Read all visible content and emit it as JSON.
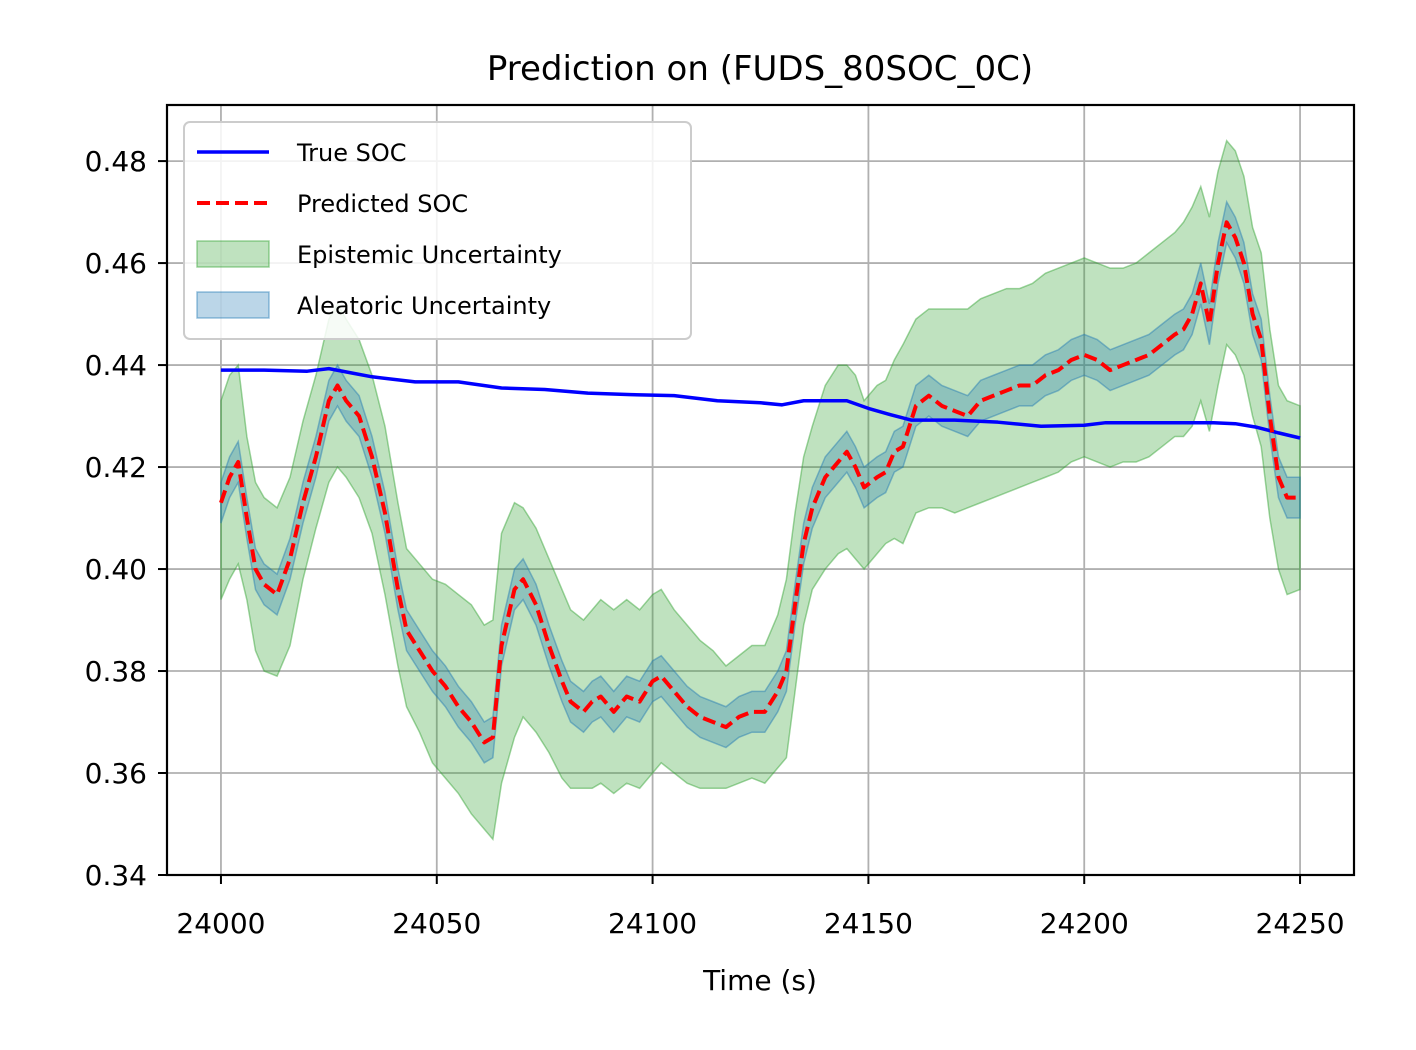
{
  "chart_data": {
    "type": "line",
    "title": "Prediction on (FUDS_80SOC_0C)",
    "xlabel": "Time (s)",
    "ylabel": "",
    "xlim": [
      23987.5,
      24262.5
    ],
    "ylim": [
      0.34,
      0.491
    ],
    "xticks": [
      24000,
      24050,
      24100,
      24150,
      24200,
      24250
    ],
    "yticks": [
      0.34,
      0.36,
      0.38,
      0.4,
      0.42,
      0.44,
      0.46,
      0.48
    ],
    "ytick_labels": [
      "0.34",
      "0.36",
      "0.38",
      "0.40",
      "0.42",
      "0.44",
      "0.46",
      "0.48"
    ],
    "grid": true,
    "legend_position": "top-left",
    "x": [
      24000,
      24002,
      24004,
      24006,
      24008,
      24010,
      24013,
      24016,
      24019,
      24022,
      24025,
      24027,
      24029,
      24032,
      24035,
      24038,
      24041,
      24043,
      24046,
      24049,
      24052,
      24055,
      24058,
      24061,
      24063,
      24065,
      24068,
      24070,
      24073,
      24076,
      24079,
      24081,
      24084,
      24086,
      24088,
      24091,
      24094,
      24097,
      24100,
      24102,
      24105,
      24108,
      24111,
      24114,
      24117,
      24120,
      24123,
      24126,
      24129,
      24131,
      24133,
      24135,
      24137,
      24140,
      24143,
      24145,
      24147,
      24149,
      24152,
      24154,
      24156,
      24158,
      24161,
      24164,
      24167,
      24170,
      24173,
      24176,
      24179,
      24182,
      24185,
      24188,
      24191,
      24194,
      24197,
      24200,
      24203,
      24206,
      24209,
      24212,
      24215,
      24218,
      24221,
      24223,
      24225,
      24227,
      24229,
      24231,
      24233,
      24235,
      24237,
      24239,
      24241,
      24243,
      24245,
      24247,
      24250
    ],
    "series": [
      {
        "name": "True SOC",
        "color": "#0000ff",
        "style": "solid",
        "x": [
          24000,
          24010,
          24020,
          24025,
          24030,
          24035,
          24045,
          24055,
          24065,
          24075,
          24085,
          24095,
          24105,
          24115,
          24125,
          24130,
          24135,
          24145,
          24150,
          24155,
          24160,
          24170,
          24180,
          24190,
          24200,
          24205,
          24210,
          24220,
          24230,
          24235,
          24240,
          24245,
          24250
        ],
        "values": [
          0.439,
          0.439,
          0.4388,
          0.4393,
          0.4385,
          0.4377,
          0.4367,
          0.4367,
          0.4355,
          0.4352,
          0.4345,
          0.4342,
          0.434,
          0.433,
          0.4326,
          0.4322,
          0.433,
          0.433,
          0.4315,
          0.4303,
          0.4292,
          0.4292,
          0.4288,
          0.428,
          0.4282,
          0.4287,
          0.4287,
          0.4287,
          0.4287,
          0.4285,
          0.4278,
          0.4267,
          0.4257
        ]
      },
      {
        "name": "Predicted SOC",
        "color": "#ff0000",
        "style": "dashed",
        "values": [
          0.413,
          0.418,
          0.421,
          0.41,
          0.4,
          0.397,
          0.395,
          0.402,
          0.413,
          0.422,
          0.433,
          0.436,
          0.433,
          0.43,
          0.422,
          0.411,
          0.396,
          0.388,
          0.384,
          0.38,
          0.377,
          0.373,
          0.37,
          0.366,
          0.367,
          0.385,
          0.396,
          0.398,
          0.393,
          0.385,
          0.378,
          0.374,
          0.372,
          0.374,
          0.375,
          0.372,
          0.375,
          0.374,
          0.378,
          0.379,
          0.376,
          0.373,
          0.371,
          0.37,
          0.369,
          0.371,
          0.372,
          0.372,
          0.376,
          0.38,
          0.393,
          0.405,
          0.412,
          0.418,
          0.421,
          0.423,
          0.42,
          0.416,
          0.418,
          0.419,
          0.423,
          0.424,
          0.432,
          0.434,
          0.432,
          0.431,
          0.43,
          0.433,
          0.434,
          0.435,
          0.436,
          0.436,
          0.438,
          0.439,
          0.441,
          0.442,
          0.441,
          0.439,
          0.44,
          0.441,
          0.442,
          0.444,
          0.446,
          0.447,
          0.45,
          0.456,
          0.448,
          0.46,
          0.468,
          0.465,
          0.46,
          0.45,
          0.445,
          0.43,
          0.418,
          0.414,
          0.414
        ]
      }
    ],
    "bands": [
      {
        "name": "Epistemic Uncertainty",
        "color": "#2ca02c",
        "lower": [
          0.394,
          0.398,
          0.401,
          0.394,
          0.384,
          0.38,
          0.379,
          0.385,
          0.398,
          0.408,
          0.417,
          0.42,
          0.418,
          0.414,
          0.407,
          0.395,
          0.381,
          0.373,
          0.368,
          0.362,
          0.359,
          0.356,
          0.352,
          0.349,
          0.347,
          0.358,
          0.367,
          0.371,
          0.368,
          0.364,
          0.359,
          0.357,
          0.357,
          0.357,
          0.358,
          0.356,
          0.358,
          0.357,
          0.36,
          0.362,
          0.36,
          0.358,
          0.357,
          0.357,
          0.357,
          0.358,
          0.359,
          0.358,
          0.361,
          0.363,
          0.376,
          0.389,
          0.396,
          0.4,
          0.403,
          0.404,
          0.402,
          0.4,
          0.403,
          0.405,
          0.406,
          0.405,
          0.411,
          0.412,
          0.412,
          0.411,
          0.412,
          0.413,
          0.414,
          0.415,
          0.416,
          0.417,
          0.418,
          0.419,
          0.421,
          0.422,
          0.421,
          0.42,
          0.421,
          0.421,
          0.422,
          0.424,
          0.426,
          0.426,
          0.428,
          0.433,
          0.427,
          0.436,
          0.444,
          0.442,
          0.438,
          0.43,
          0.424,
          0.41,
          0.4,
          0.395,
          0.396
        ],
        "upper": [
          0.433,
          0.438,
          0.44,
          0.426,
          0.417,
          0.414,
          0.412,
          0.418,
          0.429,
          0.438,
          0.449,
          0.452,
          0.449,
          0.445,
          0.438,
          0.428,
          0.413,
          0.404,
          0.401,
          0.398,
          0.397,
          0.395,
          0.393,
          0.389,
          0.39,
          0.407,
          0.413,
          0.412,
          0.408,
          0.402,
          0.396,
          0.392,
          0.39,
          0.392,
          0.394,
          0.392,
          0.394,
          0.392,
          0.395,
          0.396,
          0.392,
          0.389,
          0.386,
          0.384,
          0.381,
          0.383,
          0.385,
          0.385,
          0.391,
          0.398,
          0.411,
          0.422,
          0.428,
          0.436,
          0.44,
          0.44,
          0.438,
          0.433,
          0.436,
          0.437,
          0.441,
          0.444,
          0.449,
          0.451,
          0.451,
          0.451,
          0.451,
          0.453,
          0.454,
          0.455,
          0.455,
          0.456,
          0.458,
          0.459,
          0.46,
          0.461,
          0.46,
          0.459,
          0.459,
          0.46,
          0.462,
          0.464,
          0.466,
          0.468,
          0.471,
          0.475,
          0.469,
          0.478,
          0.484,
          0.482,
          0.477,
          0.467,
          0.462,
          0.447,
          0.436,
          0.433,
          0.432
        ]
      },
      {
        "name": "Aleatoric Uncertainty",
        "color": "#1f77b4",
        "lower": [
          0.409,
          0.414,
          0.417,
          0.406,
          0.396,
          0.393,
          0.391,
          0.398,
          0.409,
          0.418,
          0.429,
          0.432,
          0.429,
          0.426,
          0.418,
          0.407,
          0.392,
          0.384,
          0.38,
          0.376,
          0.373,
          0.369,
          0.366,
          0.362,
          0.363,
          0.381,
          0.392,
          0.394,
          0.389,
          0.381,
          0.374,
          0.37,
          0.368,
          0.37,
          0.371,
          0.368,
          0.371,
          0.37,
          0.374,
          0.375,
          0.372,
          0.369,
          0.367,
          0.366,
          0.365,
          0.367,
          0.368,
          0.368,
          0.372,
          0.376,
          0.389,
          0.401,
          0.408,
          0.414,
          0.417,
          0.419,
          0.416,
          0.412,
          0.414,
          0.415,
          0.419,
          0.42,
          0.428,
          0.43,
          0.428,
          0.427,
          0.426,
          0.429,
          0.43,
          0.431,
          0.432,
          0.432,
          0.434,
          0.435,
          0.437,
          0.438,
          0.437,
          0.435,
          0.436,
          0.437,
          0.438,
          0.44,
          0.442,
          0.443,
          0.446,
          0.452,
          0.444,
          0.456,
          0.464,
          0.461,
          0.456,
          0.446,
          0.441,
          0.426,
          0.414,
          0.41,
          0.41
        ],
        "upper": [
          0.417,
          0.422,
          0.425,
          0.414,
          0.404,
          0.401,
          0.399,
          0.406,
          0.417,
          0.426,
          0.437,
          0.44,
          0.437,
          0.434,
          0.426,
          0.415,
          0.4,
          0.392,
          0.388,
          0.384,
          0.381,
          0.377,
          0.374,
          0.37,
          0.371,
          0.389,
          0.4,
          0.402,
          0.397,
          0.389,
          0.382,
          0.378,
          0.376,
          0.378,
          0.379,
          0.376,
          0.379,
          0.378,
          0.382,
          0.383,
          0.38,
          0.377,
          0.375,
          0.374,
          0.373,
          0.375,
          0.376,
          0.376,
          0.38,
          0.384,
          0.397,
          0.409,
          0.416,
          0.422,
          0.425,
          0.427,
          0.424,
          0.42,
          0.422,
          0.423,
          0.427,
          0.428,
          0.436,
          0.438,
          0.436,
          0.435,
          0.434,
          0.437,
          0.438,
          0.439,
          0.44,
          0.44,
          0.442,
          0.443,
          0.445,
          0.446,
          0.445,
          0.443,
          0.444,
          0.445,
          0.446,
          0.448,
          0.45,
          0.451,
          0.454,
          0.46,
          0.452,
          0.464,
          0.472,
          0.469,
          0.464,
          0.454,
          0.449,
          0.434,
          0.422,
          0.418,
          0.418
        ]
      }
    ],
    "legend": [
      {
        "label": "True SOC",
        "kind": "line",
        "color": "#0000ff"
      },
      {
        "label": "Predicted SOC",
        "kind": "dashed",
        "color": "#ff0000"
      },
      {
        "label": "Epistemic Uncertainty",
        "kind": "band",
        "color": "#2ca02c"
      },
      {
        "label": "Aleatoric Uncertainty",
        "kind": "band",
        "color": "#1f77b4"
      }
    ]
  }
}
